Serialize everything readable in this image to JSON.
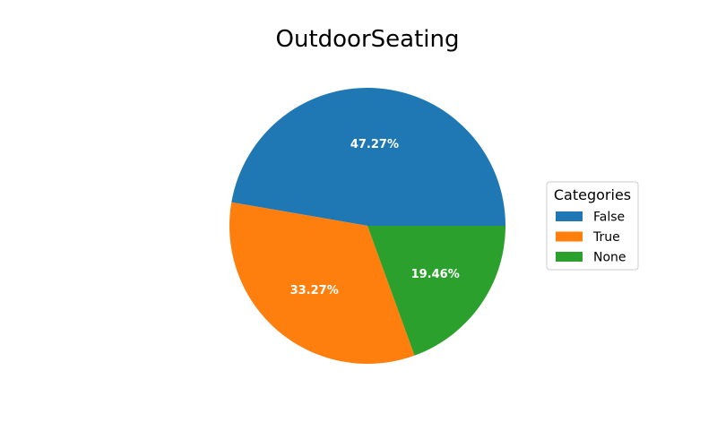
{
  "chart_data": {
    "type": "pie",
    "title": "OutdoorSeating",
    "categories": [
      "False",
      "True",
      "None"
    ],
    "values": [
      47.27,
      33.27,
      19.46
    ],
    "labels": [
      "47.27%",
      "33.27%",
      "19.46%"
    ],
    "colors": [
      "#1f77b4",
      "#ff7f0e",
      "#2ca02c"
    ],
    "start_angle_deg": 0,
    "direction": "counterclockwise",
    "legend": {
      "title": "Categories",
      "placement": "center-right"
    }
  }
}
